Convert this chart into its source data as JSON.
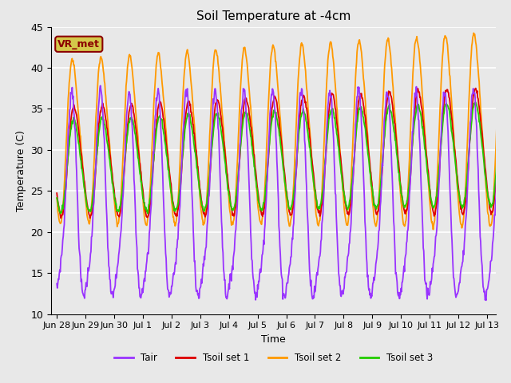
{
  "title": "Soil Temperature at -4cm",
  "xlabel": "Time",
  "ylabel": "Temperature (C)",
  "ylim": [
    10,
    45
  ],
  "background_color": "#e8e8e8",
  "plot_bg_color": "#e8e8e8",
  "grid_color": "white",
  "colors": {
    "Tair": "#9933ff",
    "Tsoil1": "#dd0000",
    "Tsoil2": "#ff9900",
    "Tsoil3": "#22cc00"
  },
  "legend_labels": [
    "Tair",
    "Tsoil set 1",
    "Tsoil set 2",
    "Tsoil set 3"
  ],
  "annotation_text": "VR_met",
  "annotation_color": "#8b0000",
  "annotation_bg": "#d4c84a",
  "tick_labels": [
    "Jun 28",
    "Jun 29",
    "Jun 30",
    "Jul 1",
    "Jul 2",
    "Jul 3",
    "Jul 4",
    "Jul 5",
    "Jul 6",
    "Jul 7",
    "Jul 8",
    "Jul 9",
    "Jul 10",
    "Jul 11",
    "Jul 12",
    "Jul 13"
  ],
  "tick_positions": [
    0,
    1,
    2,
    3,
    4,
    5,
    6,
    7,
    8,
    9,
    10,
    11,
    12,
    13,
    14,
    15
  ],
  "total_days": 15.5,
  "n_points": 900,
  "yticks": [
    10,
    15,
    20,
    25,
    30,
    35,
    40,
    45
  ]
}
